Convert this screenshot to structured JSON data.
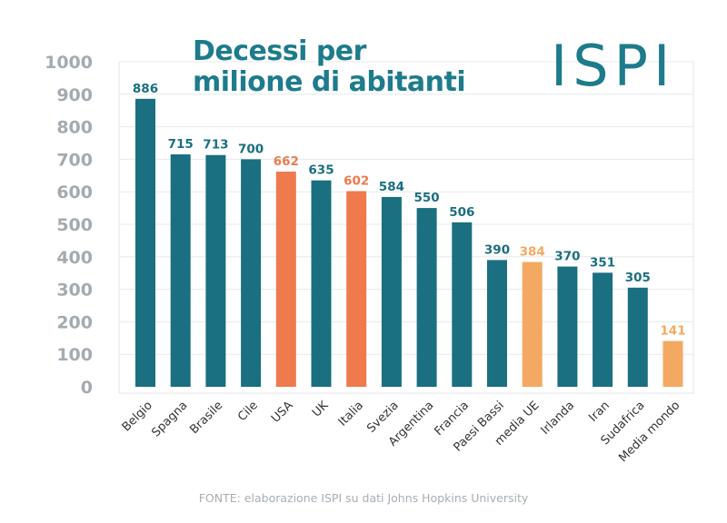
{
  "title_line1": "Decessi per",
  "title_line2": "milione di abitanti",
  "logo": "ISPI",
  "source": "FONTE: elaborazione ISPI su dati Johns Hopkins University",
  "colors": {
    "teal": "#1a6f80",
    "orange": "#ee7a4d",
    "light_orange": "#f3a962",
    "axis_text": "#a3abb1",
    "title": "#1d7b8c"
  },
  "chart_data": {
    "type": "bar",
    "title": "Decessi per milione di abitanti",
    "xlabel": "",
    "ylabel": "",
    "ylim": [
      0,
      1000
    ],
    "yticks": [
      0,
      100,
      200,
      300,
      400,
      500,
      600,
      700,
      800,
      900,
      1000
    ],
    "grid": true,
    "categories": [
      "Belgio",
      "Spagna",
      "Brasile",
      "Cile",
      "USA",
      "UK",
      "Italia",
      "Svezia",
      "Argentina",
      "Francia",
      "Paesi Bassi",
      "media UE",
      "Irlanda",
      "Iran",
      "Sudafrica",
      "Media mondo"
    ],
    "values": [
      886,
      715,
      713,
      700,
      662,
      635,
      602,
      584,
      550,
      506,
      390,
      384,
      370,
      351,
      305,
      141
    ],
    "bar_colors": [
      "teal",
      "teal",
      "teal",
      "teal",
      "orange",
      "teal",
      "orange",
      "teal",
      "teal",
      "teal",
      "teal",
      "light_orange",
      "teal",
      "teal",
      "teal",
      "light_orange"
    ]
  }
}
